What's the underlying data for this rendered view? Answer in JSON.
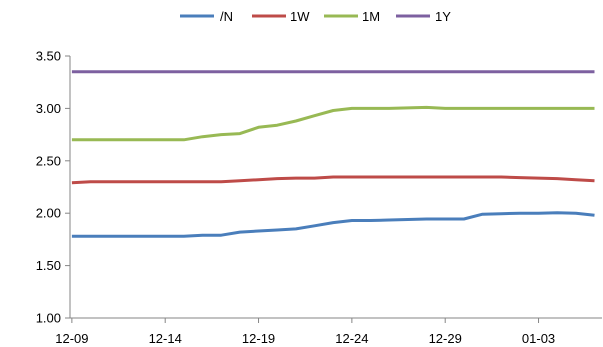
{
  "chart_data": {
    "type": "line",
    "title": "",
    "xlabel": "",
    "ylabel": "",
    "ylim": [
      1.0,
      3.5
    ],
    "yticks": [
      "1.00",
      "1.50",
      "2.00",
      "2.50",
      "3.00",
      "3.50"
    ],
    "ytick_values": [
      1.0,
      1.5,
      2.0,
      2.5,
      3.0,
      3.5
    ],
    "grid": false,
    "legend": "top-center",
    "x": [
      "12-09",
      "12-10",
      "12-11",
      "12-12",
      "12-13",
      "12-14",
      "12-15",
      "12-16",
      "12-17",
      "12-18",
      "12-19",
      "12-20",
      "12-21",
      "12-22",
      "12-23",
      "12-24",
      "12-25",
      "12-26",
      "12-27",
      "12-28",
      "12-29",
      "12-30",
      "12-31",
      "01-01",
      "01-02",
      "01-03",
      "01-04",
      "01-05",
      "01-06"
    ],
    "xtick_labels": [
      {
        "index": 0,
        "label": "12-09"
      },
      {
        "index": 5,
        "label": "12-14"
      },
      {
        "index": 10,
        "label": "12-19"
      },
      {
        "index": 15,
        "label": "12-24"
      },
      {
        "index": 20,
        "label": "12-29"
      },
      {
        "index": 25,
        "label": "01-03"
      }
    ],
    "series": [
      {
        "name": "/N",
        "color": "#4a7ebb",
        "values": [
          1.78,
          1.78,
          1.78,
          1.78,
          1.78,
          1.78,
          1.78,
          1.79,
          1.79,
          1.82,
          1.83,
          1.84,
          1.85,
          1.88,
          1.91,
          1.93,
          1.93,
          1.935,
          1.94,
          1.945,
          1.945,
          1.945,
          1.99,
          1.995,
          2.0,
          2.0,
          2.005,
          2.0,
          1.98
        ]
      },
      {
        "name": "1W",
        "color": "#be4b48",
        "values": [
          2.29,
          2.3,
          2.3,
          2.3,
          2.3,
          2.3,
          2.3,
          2.3,
          2.3,
          2.31,
          2.32,
          2.33,
          2.335,
          2.335,
          2.345,
          2.345,
          2.345,
          2.345,
          2.345,
          2.345,
          2.345,
          2.345,
          2.345,
          2.345,
          2.34,
          2.335,
          2.33,
          2.32,
          2.31
        ]
      },
      {
        "name": "1M",
        "color": "#98b954",
        "values": [
          2.7,
          2.7,
          2.7,
          2.7,
          2.7,
          2.7,
          2.7,
          2.73,
          2.75,
          2.76,
          2.82,
          2.84,
          2.88,
          2.93,
          2.98,
          3.0,
          3.0,
          3.0,
          3.005,
          3.01,
          3.0,
          3.0,
          3.0,
          3.0,
          3.0,
          3.0,
          3.0,
          3.0,
          3.0
        ]
      },
      {
        "name": "1Y",
        "color": "#7d60a0",
        "values": [
          3.35,
          3.35,
          3.35,
          3.35,
          3.35,
          3.35,
          3.35,
          3.35,
          3.35,
          3.35,
          3.35,
          3.35,
          3.35,
          3.35,
          3.35,
          3.35,
          3.35,
          3.35,
          3.35,
          3.35,
          3.35,
          3.35,
          3.35,
          3.35,
          3.35,
          3.35,
          3.35,
          3.35,
          3.35
        ]
      }
    ]
  }
}
